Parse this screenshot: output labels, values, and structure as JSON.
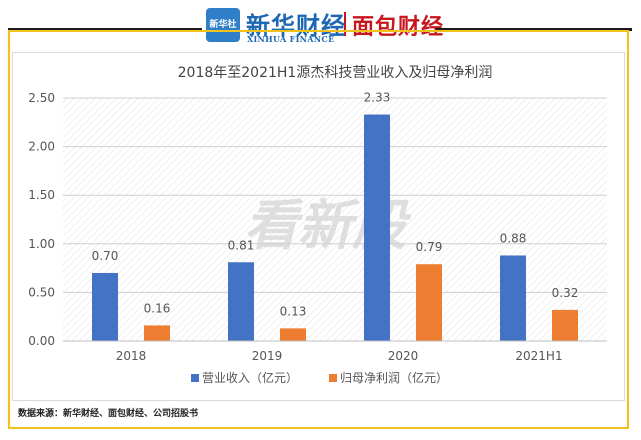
{
  "header": {
    "logo1_badge": "新华社",
    "logo1_text": "新华财经",
    "logo1_sub": "XINHUA FINANCE",
    "logo2_text": "面包财经"
  },
  "watermark": "看新股",
  "source": "数据来源：新华财经、面包财经、公司招股书",
  "colors": {
    "revenue": "#4472c4",
    "profit": "#ed7d31",
    "frame": "#f2c21b"
  },
  "chart_data": {
    "type": "bar",
    "title": "2018年至2021H1源杰科技营业收入及归母净利润",
    "categories": [
      "2018",
      "2019",
      "2020",
      "2021H1"
    ],
    "series": [
      {
        "name": "营业收入（亿元）",
        "values": [
          0.7,
          0.81,
          2.33,
          0.88
        ],
        "labels": [
          "0.70",
          "0.81",
          "2.33",
          "0.88"
        ]
      },
      {
        "name": "归母净利润（亿元）",
        "values": [
          0.16,
          0.13,
          0.79,
          0.32
        ],
        "labels": [
          "0.16",
          "0.13",
          "0.79",
          "0.32"
        ]
      }
    ],
    "yticks": [
      "0.00",
      "0.50",
      "1.00",
      "1.50",
      "2.00",
      "2.50"
    ],
    "ylim": [
      0,
      2.5
    ],
    "grid": true,
    "legend": "bottom"
  }
}
